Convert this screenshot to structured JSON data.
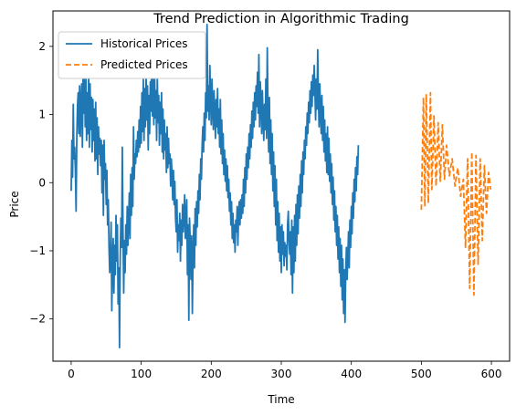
{
  "chart_data": {
    "type": "line",
    "title": "Trend Prediction in Algorithmic Trading",
    "xlabel": "Time",
    "ylabel": "Price",
    "xlim": [
      -26,
      626
    ],
    "ylim": [
      -2.62,
      2.52
    ],
    "xticks": [
      0,
      100,
      200,
      300,
      400,
      500,
      600
    ],
    "yticks": [
      -2,
      -1,
      0,
      1,
      2
    ],
    "grid": false,
    "legend": "top-left",
    "series": [
      {
        "name": "Historical Prices",
        "color": "#1f77b4",
        "style": "solid",
        "x_start": 0,
        "x_step": 1,
        "values": [
          -0.12,
          0.62,
          0.08,
          1.15,
          0.35,
          0.52,
          0.18,
          -0.42,
          0.65,
          1.12,
          1.32,
          0.72,
          1.42,
          0.68,
          1.18,
          1.45,
          0.52,
          1.58,
          1.02,
          1.78,
          0.82,
          1.52,
          0.62,
          1.32,
          0.72,
          1.62,
          0.52,
          1.45,
          0.78,
          1.25,
          0.45,
          1.22,
          0.62,
          1.08,
          0.32,
          1.18,
          0.35,
          0.95,
          0.12,
          0.82,
          0.42,
          0.65,
          0.25,
          0.62,
          -0.15,
          0.55,
          -0.48,
          0.62,
          0.05,
          0.28,
          -0.32,
          0.18,
          -0.62,
          -0.25,
          -0.92,
          -1.32,
          -1.12,
          -0.58,
          -1.88,
          -1.15,
          -0.82,
          -1.62,
          -0.92,
          -1.35,
          -0.48,
          -1.15,
          -0.62,
          -1.78,
          -1.25,
          -2.42,
          -1.12,
          -0.52,
          -0.95,
          0.52,
          -0.72,
          -1.62,
          -0.85,
          -1.32,
          -0.62,
          -1.05,
          -0.35,
          -0.92,
          -0.55,
          -0.15,
          -0.82,
          0.12,
          -0.48,
          0.22,
          -0.35,
          0.82,
          0.05,
          0.42,
          0.28,
          0.62,
          0.38,
          0.75,
          0.45,
          0.92,
          0.52,
          1.12,
          0.58,
          1.32,
          0.75,
          1.52,
          0.62,
          1.38,
          0.82,
          1.62,
          0.92,
          1.42,
          0.48,
          1.28,
          0.72,
          1.48,
          1.05,
          1.82,
          0.98,
          1.52,
          0.85,
          1.72,
          0.95,
          1.35,
          0.62,
          1.55,
          0.88,
          1.28,
          0.55,
          1.18,
          0.72,
          1.32,
          0.45,
          1.08,
          0.35,
          0.92,
          0.48,
          0.72,
          0.15,
          0.82,
          0.22,
          0.65,
          0.28,
          0.42,
          -0.05,
          0.35,
          0.12,
          -0.25,
          0.18,
          -0.32,
          0.02,
          -0.52,
          -0.72,
          -0.25,
          -1.02,
          -0.62,
          -0.85,
          -0.45,
          -1.15,
          -0.55,
          -0.92,
          -0.32,
          -0.72,
          -0.48,
          -0.18,
          -0.82,
          -0.55,
          -0.25,
          -1.35,
          -0.62,
          -2.02,
          -0.52,
          -0.88,
          -1.42,
          -0.78,
          -1.92,
          -1.12,
          -0.62,
          -1.25,
          -0.38,
          -0.92,
          -0.28,
          -0.65,
          -0.12,
          -0.45,
          0.12,
          -0.25,
          0.35,
          0.05,
          0.55,
          0.82,
          0.45,
          1.02,
          0.62,
          1.32,
          0.95,
          2.32,
          1.05,
          1.42,
          0.92,
          1.72,
          1.25,
          0.85,
          1.52,
          1.12,
          0.78,
          1.35,
          1.02,
          0.65,
          1.22,
          0.82,
          1.38,
          0.72,
          1.08,
          0.52,
          1.22,
          0.42,
          0.92,
          0.28,
          0.72,
          0.12,
          0.48,
          0.02,
          0.35,
          -0.12,
          0.25,
          -0.22,
          0.05,
          -0.42,
          -0.15,
          -0.62,
          -0.28,
          -0.82,
          -0.45,
          -0.88,
          -0.62,
          -1.02,
          -0.55,
          -0.72,
          -0.35,
          -0.92,
          -0.48,
          -0.28,
          -0.62,
          -0.25,
          -0.52,
          -0.18,
          -0.45,
          0.05,
          -0.35,
          0.22,
          -0.15,
          0.42,
          0.05,
          0.52,
          0.22,
          0.72,
          0.35,
          0.85,
          0.52,
          1.05,
          0.65,
          1.18,
          0.82,
          1.32,
          0.92,
          1.42,
          1.12,
          1.62,
          1.02,
          1.88,
          0.82,
          1.48,
          1.22,
          0.72,
          1.35,
          0.95,
          0.62,
          1.15,
          0.78,
          1.52,
          0.65,
          1.98,
          1.05,
          0.45,
          1.25,
          0.28,
          0.92,
          0.12,
          0.72,
          -0.12,
          0.45,
          -0.35,
          0.25,
          -0.62,
          0.05,
          -0.85,
          -0.28,
          -1.02,
          -0.45,
          -1.15,
          -0.65,
          -1.32,
          -0.62,
          -1.05,
          -0.72,
          -1.22,
          -0.88,
          -1.08,
          -0.92,
          -1.28,
          -0.62,
          -0.42,
          -0.85,
          -1.05,
          -0.72,
          -1.35,
          -0.55,
          -1.62,
          -0.65,
          -1.32,
          -0.48,
          -1.15,
          -0.32,
          -0.92,
          -0.18,
          -0.75,
          -0.05,
          -0.52,
          0.12,
          -0.35,
          0.32,
          -0.15,
          0.45,
          0.12,
          0.62,
          0.35,
          0.82,
          0.55,
          1.02,
          0.72,
          1.18,
          0.88,
          1.35,
          1.02,
          1.48,
          1.12,
          1.58,
          1.28,
          1.72,
          1.35,
          0.92,
          1.52,
          1.08,
          1.95,
          1.22,
          0.82,
          1.45,
          1.02,
          0.72,
          1.28,
          0.62,
          1.12,
          0.45,
          0.92,
          0.32,
          0.72,
          0.15,
          0.82,
          0.12,
          0.65,
          0.02,
          0.42,
          -0.15,
          0.28,
          -0.32,
          0.08,
          -0.55,
          -0.12,
          -0.72,
          -0.35,
          -0.92,
          -0.48,
          -1.12,
          -0.65,
          -1.32,
          -0.82,
          -1.52,
          -0.92,
          -1.72,
          -1.12,
          -1.92,
          -1.28,
          -2.05,
          -1.32,
          -0.95,
          -1.42,
          -1.08,
          -0.72,
          -1.25,
          -0.55,
          -0.95,
          -0.35,
          -0.75,
          -0.15,
          -0.52,
          0.05,
          -0.28,
          0.22,
          -0.12,
          0.38,
          0.12,
          0.55
        ]
      },
      {
        "name": "Predicted Prices",
        "color": "#ff7f0e",
        "style": "dashed",
        "x": [
          500,
          503,
          505,
          507,
          510,
          513,
          515,
          518,
          521,
          524,
          527,
          530,
          533,
          536,
          540,
          544,
          548,
          552,
          556,
          560,
          563,
          566,
          569,
          572,
          575,
          578,
          581,
          584,
          587,
          590,
          593,
          596,
          599
        ],
        "values": [
          -0.4,
          1.25,
          -0.35,
          1.3,
          -0.3,
          1.32,
          -0.1,
          0.98,
          -0.05,
          0.88,
          0.02,
          0.85,
          0.05,
          0.55,
          0.1,
          0.35,
          -0.05,
          0.22,
          -0.2,
          0.05,
          -0.95,
          0.35,
          -1.55,
          0.45,
          -1.65,
          0.4,
          -1.2,
          0.35,
          -0.85,
          0.25,
          -0.45,
          0.15,
          -0.1
        ]
      }
    ]
  }
}
